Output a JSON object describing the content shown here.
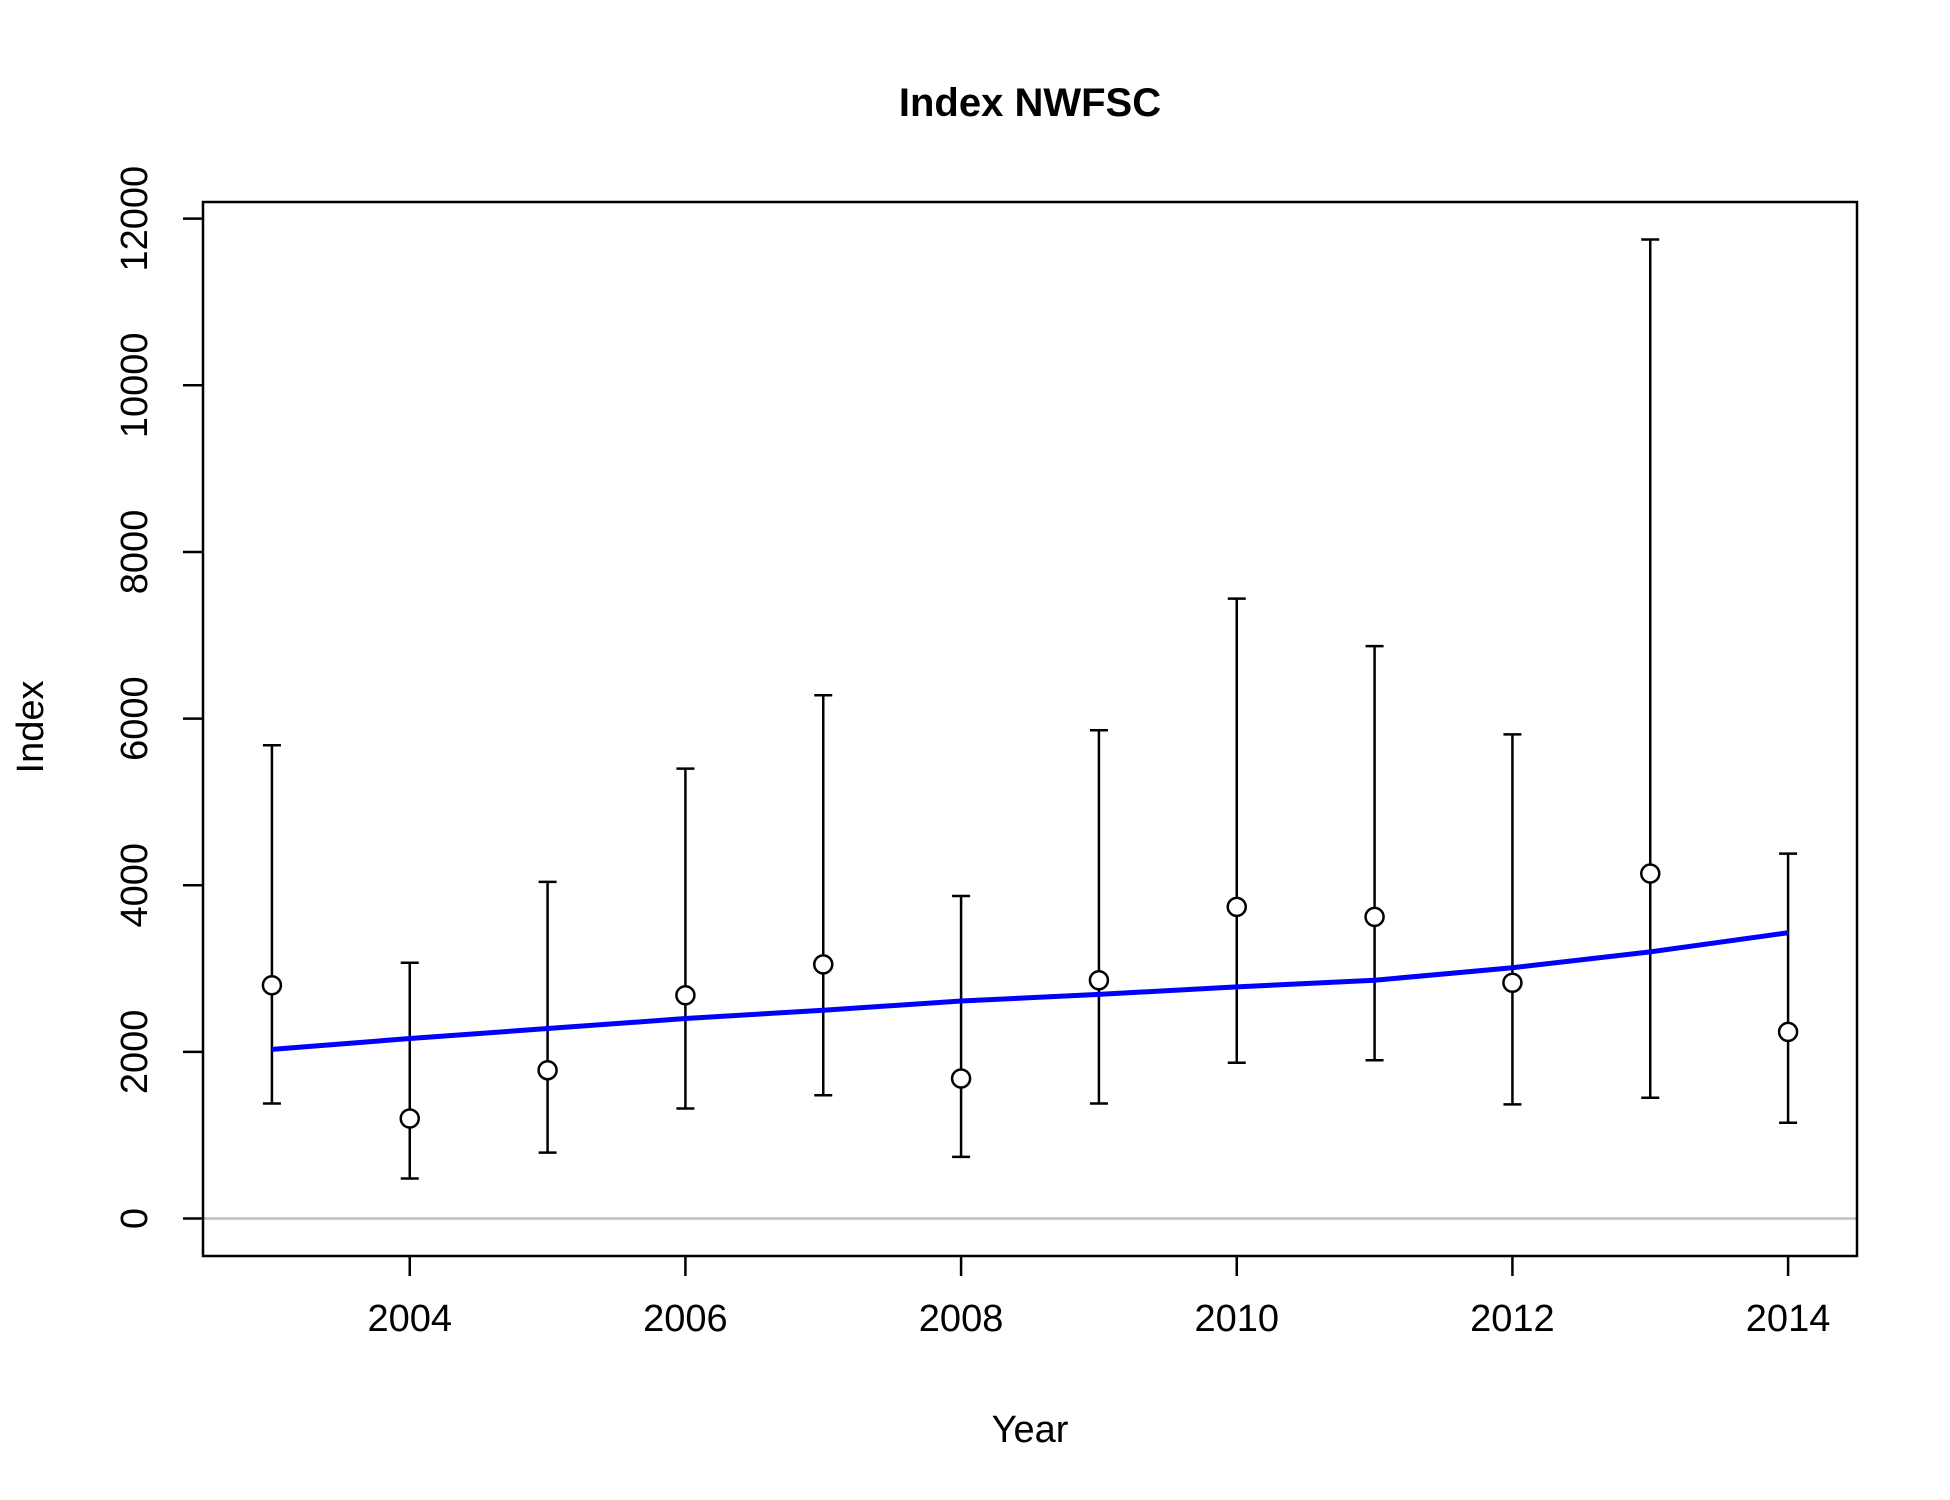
{
  "chart_data": {
    "type": "scatter",
    "title": "Index NWFSC",
    "xlabel": "Year",
    "ylabel": "Index",
    "xlim": [
      2002.5,
      2014.5
    ],
    "ylim": [
      -450,
      12200
    ],
    "x_ticks": [
      2004,
      2006,
      2008,
      2010,
      2012,
      2014
    ],
    "y_ticks": [
      0,
      2000,
      4000,
      6000,
      8000,
      10000,
      12000
    ],
    "x_tick_labels": [
      "2004",
      "2006",
      "2008",
      "2010",
      "2012",
      "2014"
    ],
    "y_tick_labels": [
      "0",
      "2000",
      "4000",
      "6000",
      "8000",
      "10000",
      "12000"
    ],
    "grid": false,
    "reference_line": {
      "y": 0,
      "color": "#bebebe"
    },
    "observed": {
      "x": [
        2003,
        2004,
        2005,
        2006,
        2007,
        2008,
        2009,
        2010,
        2011,
        2012,
        2013,
        2014
      ],
      "y": [
        2800,
        1200,
        1780,
        2680,
        3050,
        1680,
        2860,
        3740,
        3620,
        2830,
        4140,
        2240
      ],
      "lower": [
        1380,
        480,
        790,
        1320,
        1480,
        740,
        1380,
        1870,
        1900,
        1370,
        1450,
        1150
      ],
      "upper": [
        5680,
        3070,
        4040,
        5400,
        6280,
        3870,
        5860,
        7440,
        6870,
        5810,
        11750,
        4380
      ],
      "color": "#000000"
    },
    "fitted": {
      "x": [
        2003,
        2004,
        2005,
        2006,
        2007,
        2008,
        2009,
        2010,
        2011,
        2012,
        2013,
        2014
      ],
      "y": [
        2030,
        2160,
        2280,
        2400,
        2500,
        2610,
        2690,
        2780,
        2860,
        3010,
        3200,
        3430
      ],
      "color": "#0000ff"
    }
  }
}
